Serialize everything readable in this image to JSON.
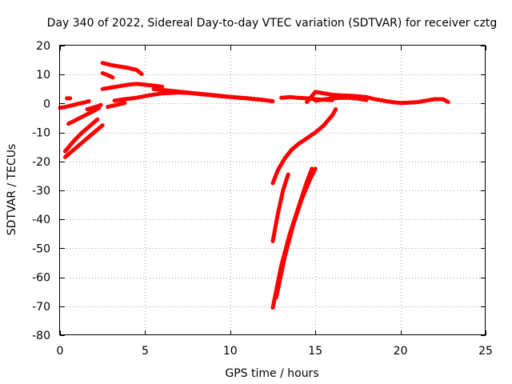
{
  "chart_data": {
    "type": "line",
    "title": "Day 340 of 2022, Sidereal Day-to-day VTEC variation (SDTVAR) for receiver cztg",
    "xlabel": "GPS time / hours",
    "ylabel": "SDTVAR / TECUs",
    "xlim": [
      0,
      25
    ],
    "ylim": [
      -80,
      20
    ],
    "xticks": [
      "0",
      "5",
      "10",
      "15",
      "20",
      "25"
    ],
    "yticks": [
      "20",
      "10",
      "0",
      "-10",
      "-20",
      "-30",
      "-40",
      "-50",
      "-60",
      "-70",
      "-80"
    ],
    "xtick_values": [
      0,
      5,
      10,
      15,
      20,
      25
    ],
    "ytick_values": [
      20,
      10,
      0,
      -10,
      -20,
      -30,
      -40,
      -50,
      -60,
      -70,
      -80
    ],
    "grid": true,
    "legend": "none",
    "color": "#ff0000",
    "series": [
      {
        "x": [
          0.0,
          0.3,
          0.6,
          1.0,
          1.4,
          1.7
        ],
        "y": [
          -1.5,
          -1.2,
          -0.8,
          -0.2,
          0.3,
          0.8
        ]
      },
      {
        "x": [
          0.4,
          0.6
        ],
        "y": [
          1.8,
          1.8
        ]
      },
      {
        "x": [
          1.6,
          1.9,
          2.3,
          2.4
        ],
        "y": [
          -2.0,
          -1.5,
          -0.8,
          -0.5
        ]
      },
      {
        "x": [
          0.5,
          1.0,
          1.5,
          2.0,
          2.3
        ],
        "y": [
          -7.0,
          -5.5,
          -4.0,
          -2.5,
          -1.5
        ]
      },
      {
        "x": [
          0.3,
          0.8,
          1.3,
          1.8,
          2.2
        ],
        "y": [
          -16.5,
          -13.0,
          -10.0,
          -7.5,
          -5.5
        ]
      },
      {
        "x": [
          0.3,
          0.9,
          1.5,
          2.0,
          2.5
        ],
        "y": [
          -18.5,
          -15.5,
          -12.5,
          -10.0,
          -7.5
        ]
      },
      {
        "x": [
          2.5,
          3.0,
          3.5,
          4.0,
          4.5,
          4.8
        ],
        "y": [
          14.0,
          13.3,
          12.8,
          12.3,
          11.6,
          10.2
        ]
      },
      {
        "x": [
          2.5,
          2.8,
          3.1
        ],
        "y": [
          10.5,
          9.8,
          9.0
        ]
      },
      {
        "x": [
          2.5,
          3.0,
          3.5,
          4.0,
          4.5,
          5.0,
          5.5,
          6.0
        ],
        "y": [
          5.0,
          5.5,
          6.0,
          6.5,
          6.8,
          6.5,
          6.2,
          5.8
        ]
      },
      {
        "x": [
          2.8,
          3.3,
          3.8
        ],
        "y": [
          -1.2,
          -0.5,
          0.2
        ]
      },
      {
        "x": [
          3.2,
          3.8,
          4.5,
          5.2,
          6.0,
          7.0,
          8.0,
          9.0,
          10.0,
          11.0,
          12.0,
          12.5
        ],
        "y": [
          1.0,
          1.5,
          2.0,
          2.8,
          3.5,
          3.8,
          3.5,
          2.9,
          2.3,
          1.8,
          1.2,
          0.8
        ]
      },
      {
        "x": [
          5.5,
          6.0,
          6.5,
          7.0,
          7.5,
          8.0,
          8.5,
          9.0,
          9.5,
          10.0,
          10.5,
          11.0,
          11.5,
          12.0
        ],
        "y": [
          5.0,
          4.7,
          4.4,
          4.1,
          3.8,
          3.4,
          3.1,
          2.8,
          2.5,
          2.3,
          2.0,
          1.8,
          1.5,
          1.2
        ]
      },
      {
        "x": [
          13.0,
          13.5,
          14.0,
          14.5,
          15.0,
          15.5,
          16.0
        ],
        "y": [
          2.0,
          2.2,
          2.0,
          1.8,
          1.5,
          1.3,
          1.2
        ]
      },
      {
        "x": [
          14.5,
          15.0,
          15.5,
          16.0,
          16.5,
          17.0,
          17.5,
          18.0,
          18.5,
          19.0,
          19.5,
          20.0,
          20.5,
          21.0,
          21.5,
          22.0,
          22.5,
          22.8
        ],
        "y": [
          0.5,
          4.0,
          3.5,
          3.0,
          2.8,
          2.7,
          2.5,
          2.2,
          1.5,
          1.0,
          0.5,
          0.2,
          0.3,
          0.5,
          1.0,
          1.5,
          1.5,
          0.5
        ]
      },
      {
        "x": [
          15.0,
          15.5,
          16.0,
          16.5,
          17.0,
          17.5,
          18.0
        ],
        "y": [
          1.0,
          1.4,
          1.8,
          2.0,
          2.0,
          1.7,
          1.2
        ]
      },
      {
        "x": [
          12.5,
          12.8,
          13.2,
          13.6,
          14.0,
          14.5,
          15.0,
          15.5,
          16.0,
          16.2
        ],
        "y": [
          -27.5,
          -23.0,
          -19.0,
          -16.0,
          -14.0,
          -12.0,
          -10.0,
          -7.5,
          -4.0,
          -2.0
        ]
      },
      {
        "x": [
          12.5,
          12.8,
          13.1,
          13.4
        ],
        "y": [
          -47.5,
          -38.0,
          -30.0,
          -24.5
        ]
      },
      {
        "x": [
          12.5,
          13.0,
          13.5,
          14.0,
          14.5,
          14.8
        ],
        "y": [
          -70.5,
          -56.0,
          -45.0,
          -36.0,
          -27.0,
          -22.5
        ]
      },
      {
        "x": [
          12.7,
          13.2,
          13.7,
          14.2,
          14.7,
          15.0
        ],
        "y": [
          -67.0,
          -53.0,
          -42.0,
          -33.0,
          -26.0,
          -22.5
        ]
      }
    ]
  }
}
